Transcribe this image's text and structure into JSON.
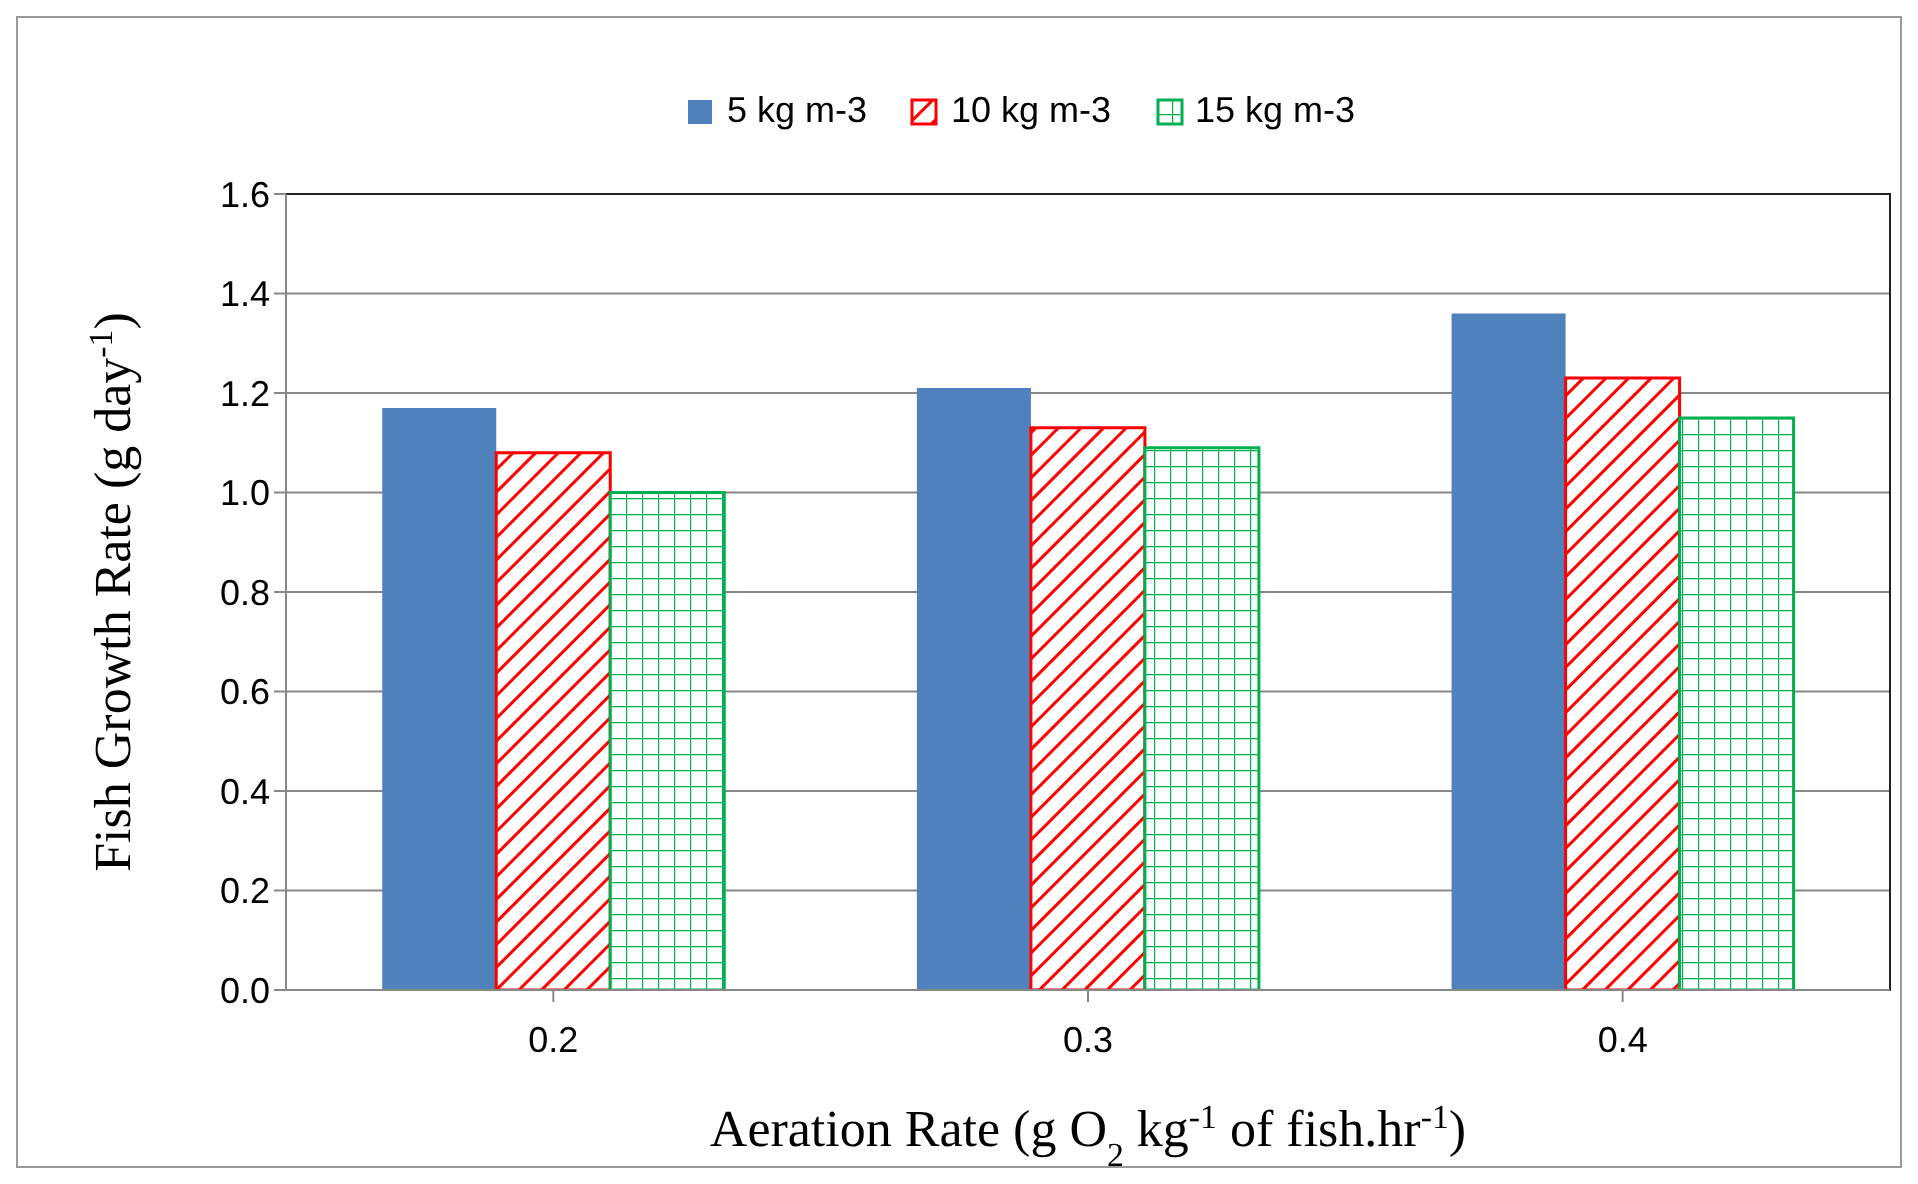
{
  "chart_data": {
    "type": "bar",
    "categories": [
      "0.2",
      "0.3",
      "0.4"
    ],
    "series": [
      {
        "name": "5 kg m-3",
        "color": "#4f81bd",
        "values": [
          1.17,
          1.21,
          1.36
        ]
      },
      {
        "name": "10 kg m-3",
        "color": "#ff0000",
        "values": [
          1.08,
          1.13,
          1.23
        ]
      },
      {
        "name": "15 kg m-3",
        "color": "#00b050",
        "values": [
          1.0,
          1.09,
          1.15
        ]
      }
    ],
    "xlabel": "Aeration Rate (g O$_{2}$ kg$^{-1}$ of fish.hr$^{-1}$)",
    "ylabel": "Fish Growth Rate (g day$^{-1}$)",
    "ylim": [
      0,
      1.6
    ],
    "yticks": [
      {
        "value": 0,
        "label": "0.0"
      },
      0.2,
      0.4,
      0.6,
      0.8,
      {
        "value": 1,
        "label": "1.0"
      },
      1.2,
      1.4,
      1.6
    ],
    "grid": "y",
    "legend": "top"
  }
}
